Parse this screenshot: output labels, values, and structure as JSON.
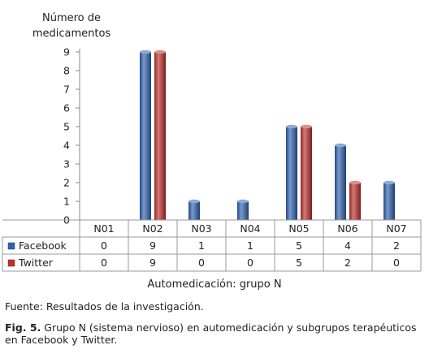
{
  "chart_data": {
    "type": "bar",
    "ylabel_lines": [
      "Número de",
      "medicamentos"
    ],
    "xlabel": "Automedicación:  grupo N",
    "categories": [
      "N01",
      "N02",
      "N03",
      "N04",
      "N05",
      "N06",
      "N07"
    ],
    "series": [
      {
        "name": "Facebook",
        "values": [
          0,
          9,
          1,
          1,
          5,
          4,
          2
        ],
        "color": "#2f63b0"
      },
      {
        "name": "Twitter",
        "values": [
          0,
          9,
          0,
          0,
          5,
          2,
          0
        ],
        "color": "#c0302c"
      }
    ],
    "ylim": [
      0,
      9
    ],
    "yticks": [
      0,
      1,
      2,
      3,
      4,
      5,
      6,
      7,
      8,
      9
    ],
    "grid": false,
    "legend": "data-table"
  },
  "source_text": "Fuente: Resultados de la investigación.",
  "caption": {
    "label": "Fig. 5.",
    "text": " Grupo N (sistema nervioso) en automedicación  y subgrupos terapéuticos en Facebook y Twitter."
  }
}
